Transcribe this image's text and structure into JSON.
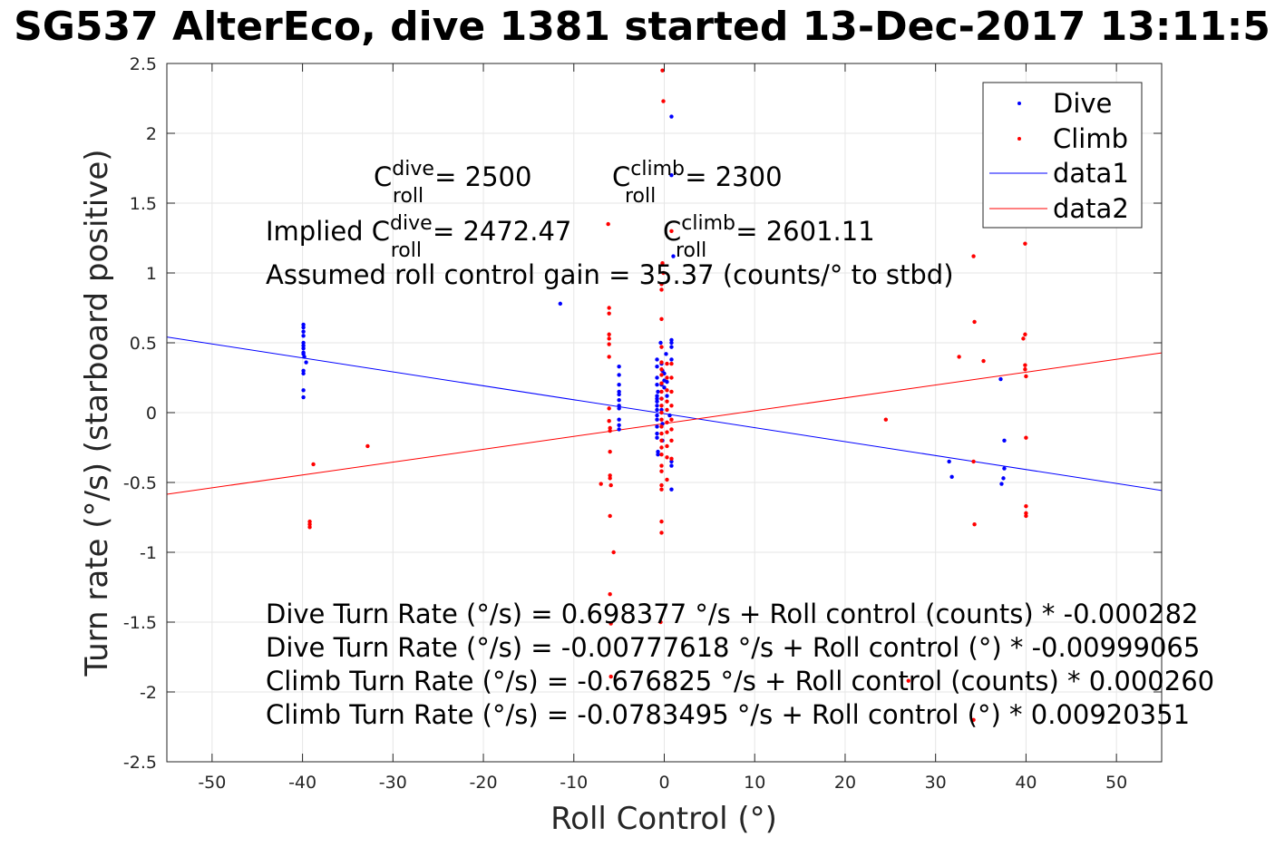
{
  "title": "SG537 AlterEco, dive 1381 started 13-Dec-2017 13:11:5",
  "chart_data": {
    "type": "scatter",
    "xlabel": "Roll Control (°)",
    "ylabel": "Turn rate (°/s) (starboard positive)",
    "xlim": [
      -55,
      55
    ],
    "ylim": [
      -2.5,
      2.5
    ],
    "xticks": [
      -50,
      -40,
      -30,
      -20,
      -10,
      0,
      10,
      20,
      30,
      40,
      50
    ],
    "yticks": [
      -2.5,
      -2,
      -1.5,
      -1,
      -0.5,
      0,
      0.5,
      1,
      1.5,
      2,
      2.5
    ],
    "grid": true,
    "legend_position": "top-right",
    "legend": [
      {
        "label": "Dive",
        "kind": "marker",
        "color": "#0000ff"
      },
      {
        "label": "Climb",
        "kind": "marker",
        "color": "#ff0000"
      },
      {
        "label": "data1",
        "kind": "line",
        "color": "#0000ff"
      },
      {
        "label": "data2",
        "kind": "line",
        "color": "#ff0000"
      }
    ],
    "series": [
      {
        "name": "Dive",
        "color": "#0000ff",
        "points": [
          [
            -39.9,
            0.63
          ],
          [
            -39.9,
            0.61
          ],
          [
            -39.9,
            0.58
          ],
          [
            -39.9,
            0.55
          ],
          [
            -39.9,
            0.5
          ],
          [
            -39.9,
            0.48
          ],
          [
            -39.9,
            0.46
          ],
          [
            -39.9,
            0.43
          ],
          [
            -39.9,
            0.42
          ],
          [
            -39.8,
            0.4
          ],
          [
            -39.9,
            0.3
          ],
          [
            -39.9,
            0.28
          ],
          [
            -39.9,
            0.16
          ],
          [
            -39.9,
            0.11
          ],
          [
            -39.6,
            0.36
          ],
          [
            -11.5,
            0.78
          ],
          [
            -5,
            0.33
          ],
          [
            -5,
            0.27
          ],
          [
            -5,
            0.2
          ],
          [
            -5,
            0.15
          ],
          [
            -5,
            0.13
          ],
          [
            -5,
            0.09
          ],
          [
            -5,
            0.05
          ],
          [
            -5,
            0.03
          ],
          [
            -5,
            -0.05
          ],
          [
            -5,
            -0.09
          ],
          [
            -5,
            -0.12
          ],
          [
            -0.8,
            0.38
          ],
          [
            -0.8,
            0.33
          ],
          [
            -0.8,
            0.25
          ],
          [
            -0.8,
            0.2
          ],
          [
            -0.7,
            0.15
          ],
          [
            -0.8,
            0.12
          ],
          [
            -0.8,
            0.1
          ],
          [
            -0.8,
            0.08
          ],
          [
            -0.8,
            0.05
          ],
          [
            -0.8,
            0.02
          ],
          [
            -0.8,
            -0.02
          ],
          [
            -0.8,
            -0.05
          ],
          [
            -0.8,
            -0.1
          ],
          [
            -0.8,
            -0.15
          ],
          [
            -0.8,
            -0.18
          ],
          [
            -0.7,
            -0.28
          ],
          [
            -0.7,
            -0.3
          ],
          [
            -0.4,
            0.5
          ],
          [
            -0.3,
            0.35
          ],
          [
            -0.3,
            0.2
          ],
          [
            -0.3,
            0.1
          ],
          [
            -0.3,
            0.02
          ],
          [
            -0.2,
            -0.08
          ],
          [
            -0.2,
            -0.2
          ],
          [
            -0.2,
            0.3
          ],
          [
            0,
            0.28
          ],
          [
            0,
            0.23
          ],
          [
            0,
            0.18
          ],
          [
            0.2,
            0.42
          ],
          [
            0.3,
            0.22
          ],
          [
            0.3,
            0.12
          ],
          [
            0.6,
            -0.02
          ],
          [
            0.8,
            0.52
          ],
          [
            0.8,
            0.5
          ],
          [
            0.8,
            0.47
          ],
          [
            0.8,
            0.38
          ],
          [
            0.8,
            -0.35
          ],
          [
            0.8,
            -0.38
          ],
          [
            0.8,
            -0.55
          ],
          [
            0.8,
            2.12
          ],
          [
            0.8,
            1.7
          ],
          [
            1,
            1.12
          ],
          [
            31.5,
            -0.35
          ],
          [
            31.8,
            -0.46
          ],
          [
            37.2,
            0.24
          ],
          [
            37.3,
            -0.51
          ],
          [
            37.5,
            -0.47
          ],
          [
            37.6,
            -0.4
          ],
          [
            37.6,
            -0.2
          ]
        ]
      },
      {
        "name": "Climb",
        "color": "#ff0000",
        "points": [
          [
            -39.2,
            -0.78
          ],
          [
            -39.2,
            -0.8
          ],
          [
            -39.2,
            -0.82
          ],
          [
            -38.8,
            -0.37
          ],
          [
            -32.8,
            -0.24
          ],
          [
            -7,
            -0.51
          ],
          [
            -6.2,
            1.35
          ],
          [
            -6.1,
            0.75
          ],
          [
            -6.1,
            0.71
          ],
          [
            -6.1,
            0.56
          ],
          [
            -6.1,
            0.53
          ],
          [
            -6.1,
            0.49
          ],
          [
            -6.1,
            0.4
          ],
          [
            -6.1,
            0.03
          ],
          [
            -6.1,
            -0.06
          ],
          [
            -6,
            -0.11
          ],
          [
            -6,
            -0.13
          ],
          [
            -6,
            -0.28
          ],
          [
            -6,
            -0.45
          ],
          [
            -6,
            -0.47
          ],
          [
            -5.9,
            -0.52
          ],
          [
            -6,
            -0.74
          ],
          [
            -5.6,
            -1
          ],
          [
            -6,
            -1.3
          ],
          [
            -5.9,
            -1.51
          ],
          [
            -5.9,
            -1.89
          ],
          [
            -0.2,
            2.45
          ],
          [
            -0.1,
            2.23
          ],
          [
            -0.3,
            0.92
          ],
          [
            -0.3,
            0.88
          ],
          [
            -0.3,
            0.67
          ],
          [
            -0.3,
            0.47
          ],
          [
            -0.3,
            0.36
          ],
          [
            -0.3,
            0.31
          ],
          [
            -0.3,
            0.27
          ],
          [
            -0.3,
            0.21
          ],
          [
            -0.3,
            0.15
          ],
          [
            -0.3,
            0.1
          ],
          [
            -0.3,
            0.05
          ],
          [
            -0.3,
            0
          ],
          [
            -0.3,
            -0.05
          ],
          [
            -0.3,
            -0.1
          ],
          [
            -0.3,
            -0.15
          ],
          [
            -0.3,
            -0.2
          ],
          [
            -0.3,
            -0.25
          ],
          [
            -0.3,
            -0.3
          ],
          [
            -0.3,
            -0.38
          ],
          [
            -0.3,
            -0.42
          ],
          [
            -0.3,
            -0.52
          ],
          [
            -0.3,
            -0.55
          ],
          [
            -0.3,
            -0.78
          ],
          [
            -0.3,
            -0.86
          ],
          [
            -0.2,
            1.07
          ],
          [
            -0.1,
            1
          ],
          [
            0.3,
            0.35
          ],
          [
            0.3,
            0.25
          ],
          [
            0.3,
            0.16
          ],
          [
            0.3,
            0.08
          ],
          [
            0.3,
            0.02
          ],
          [
            0.3,
            -0.07
          ],
          [
            0.3,
            -0.14
          ],
          [
            0.3,
            -0.24
          ],
          [
            0.3,
            -0.32
          ],
          [
            0.3,
            -0.48
          ],
          [
            0.8,
            0.35
          ],
          [
            0.8,
            0.25
          ],
          [
            0.8,
            0.15
          ],
          [
            0.8,
            0.05
          ],
          [
            0.8,
            -0.05
          ],
          [
            0.8,
            -0.12
          ],
          [
            0.8,
            -0.2
          ],
          [
            0.8,
            -0.33
          ],
          [
            0.8,
            1.3
          ],
          [
            -0.4,
            -1.5
          ],
          [
            24.5,
            -0.05
          ],
          [
            27,
            -1.92
          ],
          [
            32.6,
            0.4
          ],
          [
            34.2,
            1.12
          ],
          [
            34.3,
            0.65
          ],
          [
            34.2,
            -0.35
          ],
          [
            34.3,
            -0.8
          ],
          [
            34.2,
            -2.2
          ],
          [
            35.3,
            0.37
          ],
          [
            39.7,
            0.53
          ],
          [
            39.9,
            1.21
          ],
          [
            39.9,
            0.56
          ],
          [
            39.9,
            0.34
          ],
          [
            39.9,
            0.31
          ],
          [
            40,
            0.26
          ],
          [
            40,
            -0.18
          ],
          [
            40,
            -0.67
          ],
          [
            40,
            -0.72
          ],
          [
            40,
            -0.74
          ]
        ]
      }
    ],
    "fit_lines": [
      {
        "name": "data1",
        "color": "#0000ff",
        "x": [
          -55,
          55
        ],
        "y": [
          0.5417,
          -0.5573
        ]
      },
      {
        "name": "data2",
        "color": "#ff0000",
        "x": [
          -55,
          55
        ],
        "y": [
          -0.5845,
          0.4279
        ]
      }
    ]
  },
  "annotations": {
    "c_dive_value": "= 2500",
    "c_climb_value": "= 2300",
    "implied_prefix": "Implied C",
    "implied_dive_value": "= 2472.47",
    "implied_climb_value": "= 2601.11",
    "c_letter": "C",
    "sup_dive": "dive",
    "sup_climb": "climb",
    "sub_roll": "roll",
    "gain_line": "Assumed roll control gain = 35.37 (counts/° to stbd)",
    "fit_lines": [
      "Dive Turn Rate (°/s) = 0.698377 °/s + Roll control (counts) * -0.000282",
      "Dive Turn Rate (°/s) = -0.00777618 °/s + Roll control (°) * -0.00999065",
      "Climb Turn Rate (°/s) = -0.676825 °/s + Roll control (counts) * 0.000260",
      "Climb Turn Rate (°/s) = -0.0783495 °/s + Roll control (°) * 0.00920351"
    ]
  }
}
